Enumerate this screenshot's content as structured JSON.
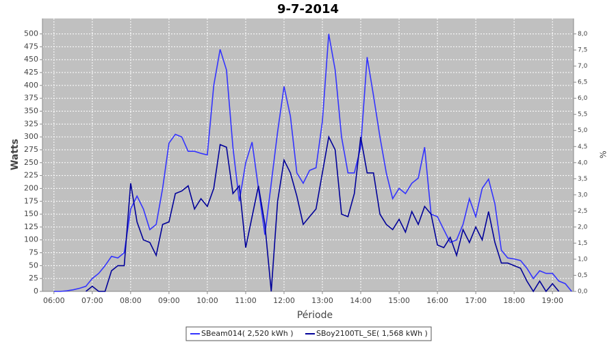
{
  "chart_data": {
    "type": "line",
    "title": "9-7-2014",
    "xlabel": "Période",
    "ylabel": "Watts",
    "y2label": "%",
    "x": [
      "06:00",
      "06:10",
      "06:20",
      "06:30",
      "06:40",
      "06:50",
      "07:00",
      "07:10",
      "07:20",
      "07:30",
      "07:40",
      "07:50",
      "08:00",
      "08:10",
      "08:20",
      "08:30",
      "08:40",
      "08:50",
      "09:00",
      "09:10",
      "09:20",
      "09:30",
      "09:40",
      "09:50",
      "10:00",
      "10:10",
      "10:20",
      "10:30",
      "10:40",
      "10:50",
      "11:00",
      "11:10",
      "11:20",
      "11:30",
      "11:40",
      "11:50",
      "12:00",
      "12:10",
      "12:20",
      "12:30",
      "12:40",
      "12:50",
      "13:00",
      "13:10",
      "13:20",
      "13:30",
      "13:40",
      "13:50",
      "14:00",
      "14:10",
      "14:20",
      "14:30",
      "14:40",
      "14:50",
      "15:00",
      "15:10",
      "15:20",
      "15:30",
      "15:40",
      "15:50",
      "16:00",
      "16:10",
      "16:20",
      "16:30",
      "16:40",
      "16:50",
      "17:00",
      "17:10",
      "17:20",
      "17:30",
      "17:40",
      "17:50",
      "18:00",
      "18:10",
      "18:20",
      "18:30",
      "18:40",
      "18:50",
      "19:00",
      "19:10",
      "19:20",
      "19:30"
    ],
    "series": [
      {
        "name": "SBeam014( 2,520 kWh )",
        "color": "#3333ff",
        "values": [
          0,
          0,
          1,
          3,
          6,
          10,
          25,
          35,
          50,
          68,
          65,
          75,
          160,
          185,
          160,
          120,
          130,
          200,
          288,
          305,
          300,
          272,
          272,
          268,
          265,
          400,
          470,
          430,
          280,
          175,
          250,
          290,
          200,
          110,
          210,
          310,
          398,
          340,
          230,
          210,
          235,
          240,
          330,
          500,
          430,
          300,
          230,
          230,
          280,
          455,
          380,
          300,
          230,
          180,
          200,
          190,
          210,
          220,
          280,
          150,
          145,
          120,
          95,
          100,
          130,
          180,
          145,
          200,
          218,
          170,
          80,
          65,
          63,
          60,
          45,
          25,
          40,
          35,
          35,
          20,
          15,
          0
        ]
      },
      {
        "name": "SBoy2100TL_SE( 1,568 kWh )",
        "color": "#000099",
        "values": [
          null,
          null,
          null,
          null,
          null,
          0,
          10,
          0,
          0,
          40,
          50,
          50,
          210,
          135,
          100,
          95,
          70,
          130,
          135,
          190,
          195,
          205,
          160,
          180,
          165,
          200,
          285,
          280,
          190,
          205,
          85,
          145,
          205,
          130,
          0,
          175,
          255,
          230,
          185,
          130,
          145,
          160,
          230,
          300,
          275,
          150,
          145,
          190,
          300,
          230,
          230,
          150,
          130,
          120,
          140,
          115,
          155,
          130,
          165,
          150,
          90,
          85,
          105,
          70,
          120,
          95,
          125,
          100,
          155,
          95,
          55,
          55,
          50,
          45,
          20,
          0,
          20,
          0,
          15,
          0,
          null,
          null
        ]
      }
    ],
    "xlim": [
      "05:42",
      "19:33"
    ],
    "xticks": [
      "06:00",
      "07:00",
      "08:00",
      "09:00",
      "10:00",
      "11:00",
      "12:00",
      "13:00",
      "14:00",
      "15:00",
      "16:00",
      "17:00",
      "18:00",
      "19:00"
    ],
    "ylim": [
      0,
      530
    ],
    "yticks": [
      0,
      25,
      50,
      75,
      100,
      125,
      150,
      175,
      200,
      225,
      250,
      275,
      300,
      325,
      350,
      375,
      400,
      425,
      450,
      475,
      500
    ],
    "y2lim": [
      0,
      8.48
    ],
    "y2ticks": [
      {
        "value": 0,
        "label": "0,0"
      },
      {
        "value": 0.5,
        "label": "0,5"
      },
      {
        "value": 1,
        "label": "1,0"
      },
      {
        "value": 1.5,
        "label": "1,5"
      },
      {
        "value": 2,
        "label": "2,0"
      },
      {
        "value": 2.5,
        "label": "2,5"
      },
      {
        "value": 3,
        "label": "3,0"
      },
      {
        "value": 3.5,
        "label": "3,5"
      },
      {
        "value": 4,
        "label": "4,0"
      },
      {
        "value": 4.5,
        "label": "4,5"
      },
      {
        "value": 5,
        "label": "5,0"
      },
      {
        "value": 5.5,
        "label": "5,5"
      },
      {
        "value": 6,
        "label": "6,0"
      },
      {
        "value": 6.5,
        "label": "6,5"
      },
      {
        "value": 7,
        "label": "7,0"
      },
      {
        "value": 7.5,
        "label": "7,5"
      },
      {
        "value": 8,
        "label": "8,0"
      }
    ],
    "grid": true,
    "legend": "bottom"
  }
}
